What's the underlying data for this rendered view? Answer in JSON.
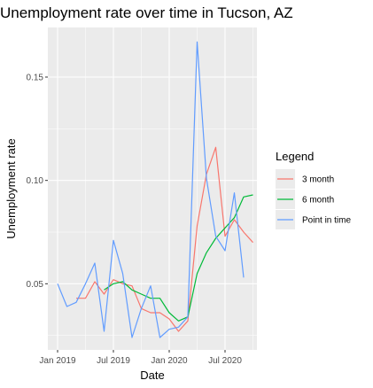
{
  "chart_data": {
    "type": "line",
    "title": "Unemployment rate over time in Tucson, AZ",
    "xlabel": "Date",
    "ylabel": "Unemployment rate",
    "x_ticks": [
      "Jan 2019",
      "Jul 2019",
      "Jan 2020",
      "Jul 2020"
    ],
    "y_ticks": [
      "0.05",
      "0.10",
      "0.15"
    ],
    "ylim": [
      0.018,
      0.174
    ],
    "grid": true,
    "legend_title": "Legend",
    "legend_position": "right",
    "colors": {
      "panel": "#ebebeb",
      "grid": "#ffffff"
    },
    "x": [
      "2019-01",
      "2019-02",
      "2019-03",
      "2019-04",
      "2019-05",
      "2019-06",
      "2019-07",
      "2019-08",
      "2019-09",
      "2019-10",
      "2019-11",
      "2019-12",
      "2020-01",
      "2020-02",
      "2020-03",
      "2020-04",
      "2020-05",
      "2020-06",
      "2020-07",
      "2020-08",
      "2020-09",
      "2020-10"
    ],
    "series": [
      {
        "name": "3 month",
        "color": "#f8766d",
        "values": [
          null,
          null,
          0.043,
          0.043,
          0.051,
          0.045,
          0.052,
          0.05,
          0.049,
          0.038,
          0.036,
          0.036,
          0.033,
          0.027,
          0.032,
          0.078,
          0.103,
          0.116,
          0.073,
          0.081,
          0.075,
          0.07
        ]
      },
      {
        "name": "6 month",
        "color": "#00ba38",
        "values": [
          null,
          null,
          null,
          null,
          null,
          0.047,
          0.05,
          0.051,
          0.047,
          0.045,
          0.043,
          0.043,
          0.036,
          0.032,
          0.034,
          0.055,
          0.065,
          0.072,
          0.077,
          0.082,
          0.092,
          0.093
        ]
      },
      {
        "name": "Point in time",
        "color": "#619cff",
        "values": [
          0.05,
          0.039,
          0.041,
          0.05,
          0.06,
          0.027,
          0.071,
          0.055,
          0.024,
          0.038,
          0.049,
          0.024,
          0.028,
          0.029,
          0.034,
          0.167,
          0.101,
          0.073,
          0.066,
          0.094,
          0.053,
          null
        ]
      }
    ]
  }
}
